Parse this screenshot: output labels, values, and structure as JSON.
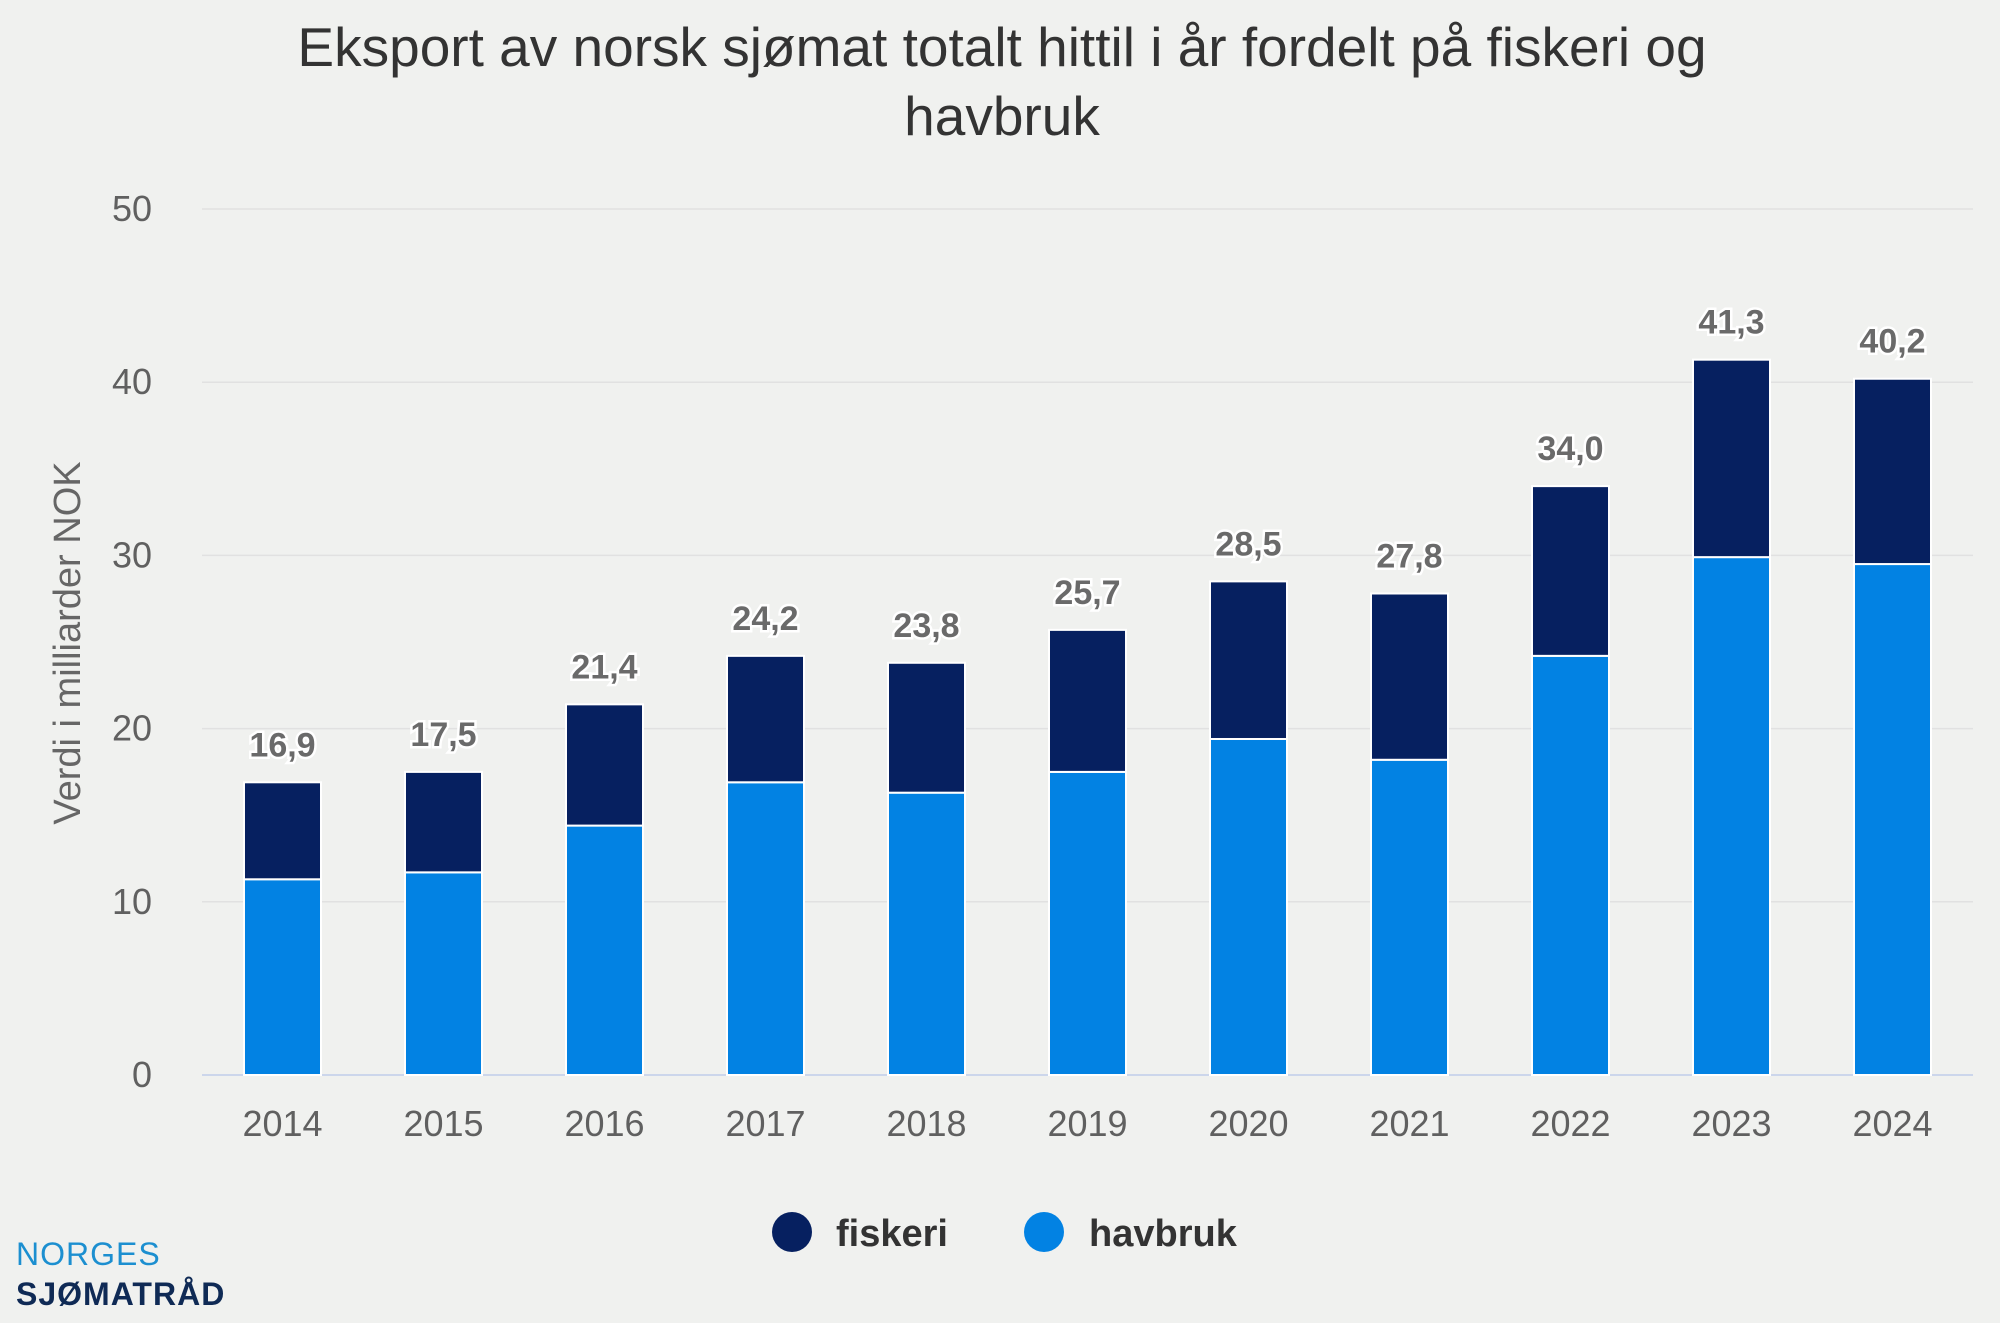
{
  "colors": {
    "fiskeri": "#062060",
    "havbruk": "#0282e3",
    "background": "#f0f1ef",
    "grid": "#e1e1e1",
    "logo_top": "#1c8fd0",
    "logo_bottom": "#0f2a55"
  },
  "logo": {
    "line1": "NORGES",
    "line2": "SJØMATRÅD"
  },
  "chart_data": {
    "type": "bar",
    "stacked": true,
    "title": "Eksport av norsk sjømat totalt hittil i år fordelt på fiskeri og havbruk",
    "title_lines": [
      "Eksport av norsk sjømat totalt hittil i år fordelt på fiskeri og",
      "havbruk"
    ],
    "xlabel": "",
    "ylabel": "Verdi i milliarder NOK",
    "ylim": [
      0,
      50
    ],
    "yticks": [
      "0",
      "10",
      "20",
      "30",
      "40",
      "50"
    ],
    "categories": [
      "2014",
      "2015",
      "2016",
      "2017",
      "2018",
      "2019",
      "2020",
      "2021",
      "2022",
      "2023",
      "2024"
    ],
    "series": [
      {
        "name": "havbruk",
        "values": [
          11.3,
          11.7,
          14.4,
          16.9,
          16.3,
          17.5,
          19.4,
          18.2,
          24.2,
          29.9,
          29.5
        ]
      },
      {
        "name": "fiskeri",
        "values": [
          5.6,
          5.8,
          7.0,
          7.3,
          7.5,
          8.2,
          9.1,
          9.6,
          9.8,
          11.4,
          10.7
        ]
      }
    ],
    "totals": [
      "16,9",
      "17,5",
      "21,4",
      "24,2",
      "23,8",
      "25,7",
      "28,5",
      "27,8",
      "34,0",
      "41,3",
      "40,2"
    ],
    "legend": [
      {
        "name": "fiskeri"
      },
      {
        "name": "havbruk"
      }
    ],
    "legend_position": "bottom",
    "grid": true
  }
}
